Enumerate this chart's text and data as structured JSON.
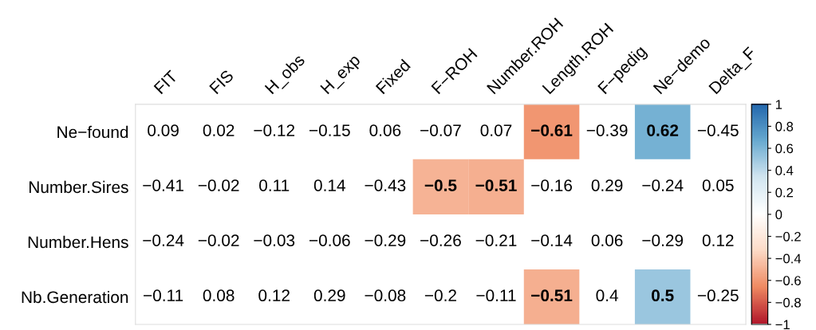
{
  "chart_data": {
    "type": "heatmap",
    "categories": [
      "FIT",
      "FIS",
      "H_obs",
      "H_exp",
      "Fixed",
      "F−ROH",
      "Number.ROH",
      "Length.ROH",
      "F−pedig",
      "Ne−demo",
      "Delta_F"
    ],
    "y_categories": [
      "Ne−found",
      "Number.Sires",
      "Number.Hens",
      "Nb.Generation"
    ],
    "cells": [
      [
        null,
        null,
        null,
        null,
        null,
        null,
        null,
        -0.61,
        null,
        0.62,
        null
      ],
      [
        null,
        null,
        null,
        null,
        null,
        -0.5,
        -0.51,
        null,
        null,
        null,
        null
      ],
      [
        null,
        null,
        null,
        null,
        null,
        null,
        null,
        null,
        null,
        null,
        null
      ],
      [
        null,
        null,
        null,
        null,
        null,
        null,
        null,
        -0.51,
        null,
        0.5,
        null
      ]
    ],
    "cell_labels": [
      [
        "0.09",
        "0.02",
        "−0.12",
        "−0.15",
        "0.06",
        "−0.07",
        "0.07",
        "−0.61",
        "−0.39",
        "0.62",
        "−0.45"
      ],
      [
        "−0.41",
        "−0.02",
        "0.11",
        "0.14",
        "−0.43",
        "−0.5",
        "−0.51",
        "−0.16",
        "0.29",
        "−0.24",
        "0.05"
      ],
      [
        "−0.24",
        "−0.02",
        "−0.03",
        "−0.06",
        "−0.29",
        "−0.26",
        "−0.21",
        "−0.14",
        "0.06",
        "−0.29",
        "0.12"
      ],
      [
        "−0.11",
        "0.08",
        "0.12",
        "0.29",
        "−0.08",
        "−0.2",
        "−0.11",
        "−0.51",
        "0.4",
        "0.5",
        "−0.25"
      ]
    ],
    "clim": [
      -1,
      1
    ],
    "cticks": [
      {
        "value": -1,
        "label": "−1"
      },
      {
        "value": -0.8,
        "label": "−0.8"
      },
      {
        "value": -0.6,
        "label": "−0.6"
      },
      {
        "value": -0.4,
        "label": "−0.4"
      },
      {
        "value": -0.2,
        "label": "−0.2"
      },
      0,
      0.2,
      0.4,
      0.6,
      0.8,
      1
    ]
  }
}
